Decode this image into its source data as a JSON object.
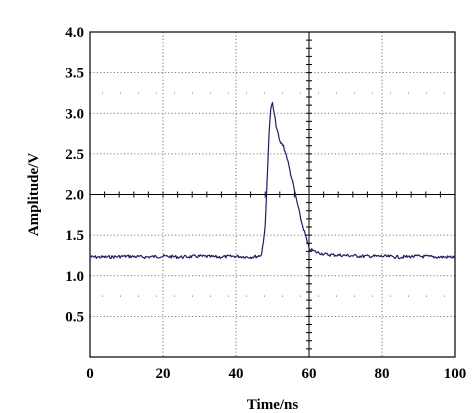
{
  "chart_data": {
    "type": "line",
    "title": "",
    "xlabel": "Time/ns",
    "ylabel": "Amplitude/V",
    "xlim": [
      0,
      100
    ],
    "ylim": [
      0,
      4.0
    ],
    "x_ticks": [
      0,
      20,
      40,
      60,
      80,
      100
    ],
    "x_tick_labels": [
      "0",
      "20",
      "40",
      "60",
      "80",
      "100"
    ],
    "y_ticks": [
      0.5,
      1.0,
      1.5,
      2.0,
      2.5,
      3.0,
      3.5,
      4.0
    ],
    "y_tick_labels": [
      "0.5",
      "1.0",
      "1.5",
      "2.0",
      "2.5",
      "3.0",
      "3.5",
      "4.0"
    ],
    "grid": true,
    "legend": "none",
    "line_color": "#1a1a7a",
    "series": [
      {
        "x": [
          0,
          5,
          10,
          15,
          20,
          25,
          30,
          35,
          40,
          44,
          46,
          47,
          48,
          49,
          49.5,
          50,
          51,
          52,
          53,
          54,
          55,
          56,
          57,
          58,
          59,
          60,
          62,
          65,
          70,
          75,
          80,
          85,
          90,
          95,
          100
        ],
        "y": [
          1.23,
          1.23,
          1.24,
          1.23,
          1.24,
          1.23,
          1.24,
          1.23,
          1.24,
          1.23,
          1.24,
          1.26,
          1.6,
          2.7,
          3.05,
          3.12,
          2.85,
          2.65,
          2.6,
          2.45,
          2.25,
          2.05,
          1.85,
          1.65,
          1.5,
          1.33,
          1.29,
          1.26,
          1.25,
          1.24,
          1.24,
          1.23,
          1.24,
          1.23,
          1.23
        ]
      }
    ]
  }
}
